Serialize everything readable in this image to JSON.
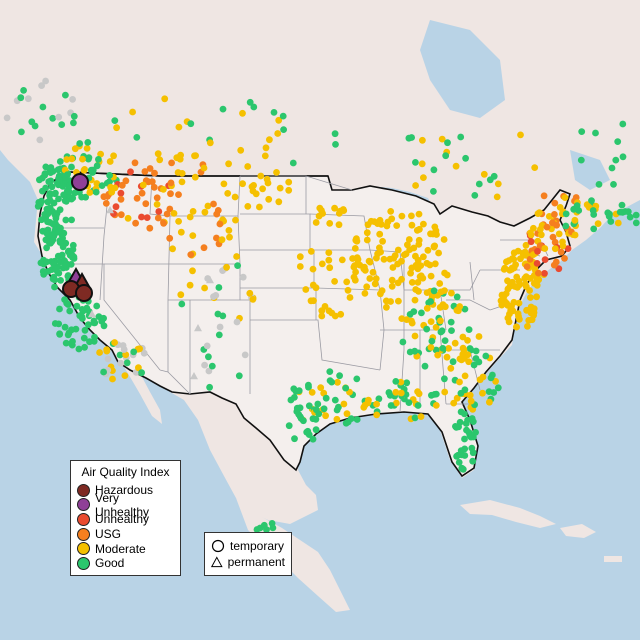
{
  "legend": {
    "title": "Air Quality Index",
    "items": [
      {
        "label": "Hazardous",
        "color": "#7e2a23"
      },
      {
        "label": "Very Unhealthy",
        "color": "#8f3f97"
      },
      {
        "label": "Unhealthy",
        "color": "#ea4b30"
      },
      {
        "label": "USG",
        "color": "#f57f1f"
      },
      {
        "label": "Moderate",
        "color": "#f5c000"
      },
      {
        "label": "Good",
        "color": "#2bc66d"
      }
    ]
  },
  "monitor_types": {
    "items": [
      {
        "label": "temporary",
        "symbol": "circle"
      },
      {
        "label": "permanent",
        "symbol": "triangle"
      }
    ]
  },
  "colors": {
    "water": "#b9d3e6",
    "land": "#efe6e3",
    "us_land": "#f4efed",
    "border": "#111111",
    "state_line": "#9b9ba3",
    "no_data": "#c8c8c8"
  }
}
